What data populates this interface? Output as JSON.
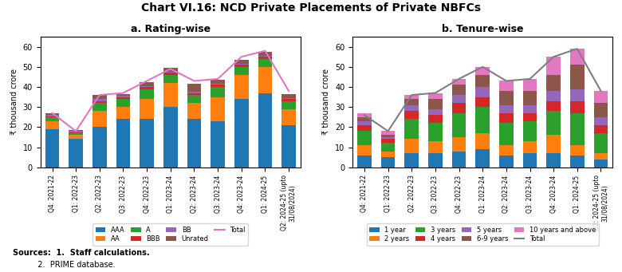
{
  "title": "Chart VI.16: NCD Private Placements of Private NBFCs",
  "annotations": [
    "Sources:  1.  Staff calculations.",
    "          2.  PRIME database."
  ],
  "chart_data": [
    {
      "type": "bar",
      "stacked": true,
      "title": "a. Rating-wise",
      "ylabel": "₹ thousand crore",
      "categories": [
        "Q4: 2021-22",
        "Q1: 2022-23",
        "Q2: 2022-23",
        "Q3: 2022-23",
        "Q4: 2022-23",
        "Q1: 2023-24",
        "Q2: 2023-24",
        "Q3: 2023-24",
        "Q4: 2023-24",
        "Q1: 2024-25",
        "Q2: 2024-25 (upto\n31/08/2024)"
      ],
      "series": [
        {
          "name": "AAA",
          "values": [
            19,
            14,
            20,
            24,
            24,
            30,
            24,
            23,
            34,
            37,
            21
          ]
        },
        {
          "name": "AA",
          "values": [
            4,
            2,
            8,
            6,
            10,
            12,
            8,
            12,
            12,
            13,
            8
          ]
        },
        {
          "name": "A",
          "values": [
            2,
            1,
            4,
            4,
            5,
            4,
            4,
            5,
            4,
            4,
            4
          ]
        },
        {
          "name": "BBB",
          "values": [
            0.5,
            0.5,
            1,
            1,
            1,
            1,
            1,
            1,
            1,
            1,
            1
          ]
        },
        {
          "name": "BB",
          "values": [
            0.5,
            0.5,
            1,
            0.5,
            0.5,
            0.5,
            0.5,
            0.5,
            0.5,
            0.5,
            0.5
          ]
        },
        {
          "name": "Unrated",
          "values": [
            1,
            0.5,
            2,
            1,
            2,
            2,
            4,
            2,
            2,
            2,
            2
          ]
        },
        {
          "name": "Total",
          "type": "line",
          "values": [
            27,
            18,
            36,
            37,
            43,
            49,
            43,
            44,
            55,
            58,
            38
          ]
        }
      ],
      "ylim": [
        0,
        65
      ],
      "yticks": [
        0,
        10,
        20,
        30,
        40,
        50,
        60
      ],
      "grid": false,
      "legend": "upper center"
    },
    {
      "type": "bar",
      "stacked": true,
      "title": "b. Tenure-wise",
      "ylabel": "₹ thousand crore",
      "categories": [
        "Q4: 2021-22",
        "Q1: 2022-23",
        "Q2: 2022-23",
        "Q3: 2022-23",
        "Q4: 2022-23",
        "Q1: 2023-24",
        "Q2: 2023-24",
        "Q3: 2023-24",
        "Q4: 2023-24",
        "Q1: 2024-25",
        "Q2: 2024-25 (upto\n31/08/2024)"
      ],
      "series": [
        {
          "name": "1 year",
          "values": [
            6,
            5,
            7,
            7,
            8,
            9,
            6,
            7,
            7,
            6,
            4
          ]
        },
        {
          "name": "2 years",
          "values": [
            5,
            3,
            7,
            6,
            7,
            8,
            5,
            6,
            9,
            5,
            3
          ]
        },
        {
          "name": "3 years",
          "values": [
            7,
            4,
            10,
            9,
            12,
            13,
            11,
            10,
            12,
            16,
            10
          ]
        },
        {
          "name": "4 years",
          "values": [
            3,
            2,
            4,
            4,
            5,
            5,
            5,
            4,
            5,
            6,
            4
          ]
        },
        {
          "name": "5 years",
          "values": [
            2,
            1,
            3,
            3,
            4,
            5,
            4,
            4,
            5,
            6,
            4
          ]
        },
        {
          "name": "6-9 years",
          "values": [
            2,
            1,
            3,
            5,
            5,
            6,
            7,
            7,
            8,
            12,
            7
          ]
        },
        {
          "name": "10 years and above",
          "values": [
            2,
            2,
            2,
            3,
            3,
            4,
            5,
            6,
            9,
            8,
            6
          ]
        },
        {
          "name": "Total",
          "type": "line",
          "values": [
            26,
            18,
            36,
            37,
            44,
            50,
            43,
            44,
            55,
            59,
            38
          ]
        }
      ],
      "ylim": [
        0,
        65
      ],
      "yticks": [
        0,
        10,
        20,
        30,
        40,
        50,
        60
      ],
      "grid": false,
      "legend": "upper center"
    }
  ]
}
